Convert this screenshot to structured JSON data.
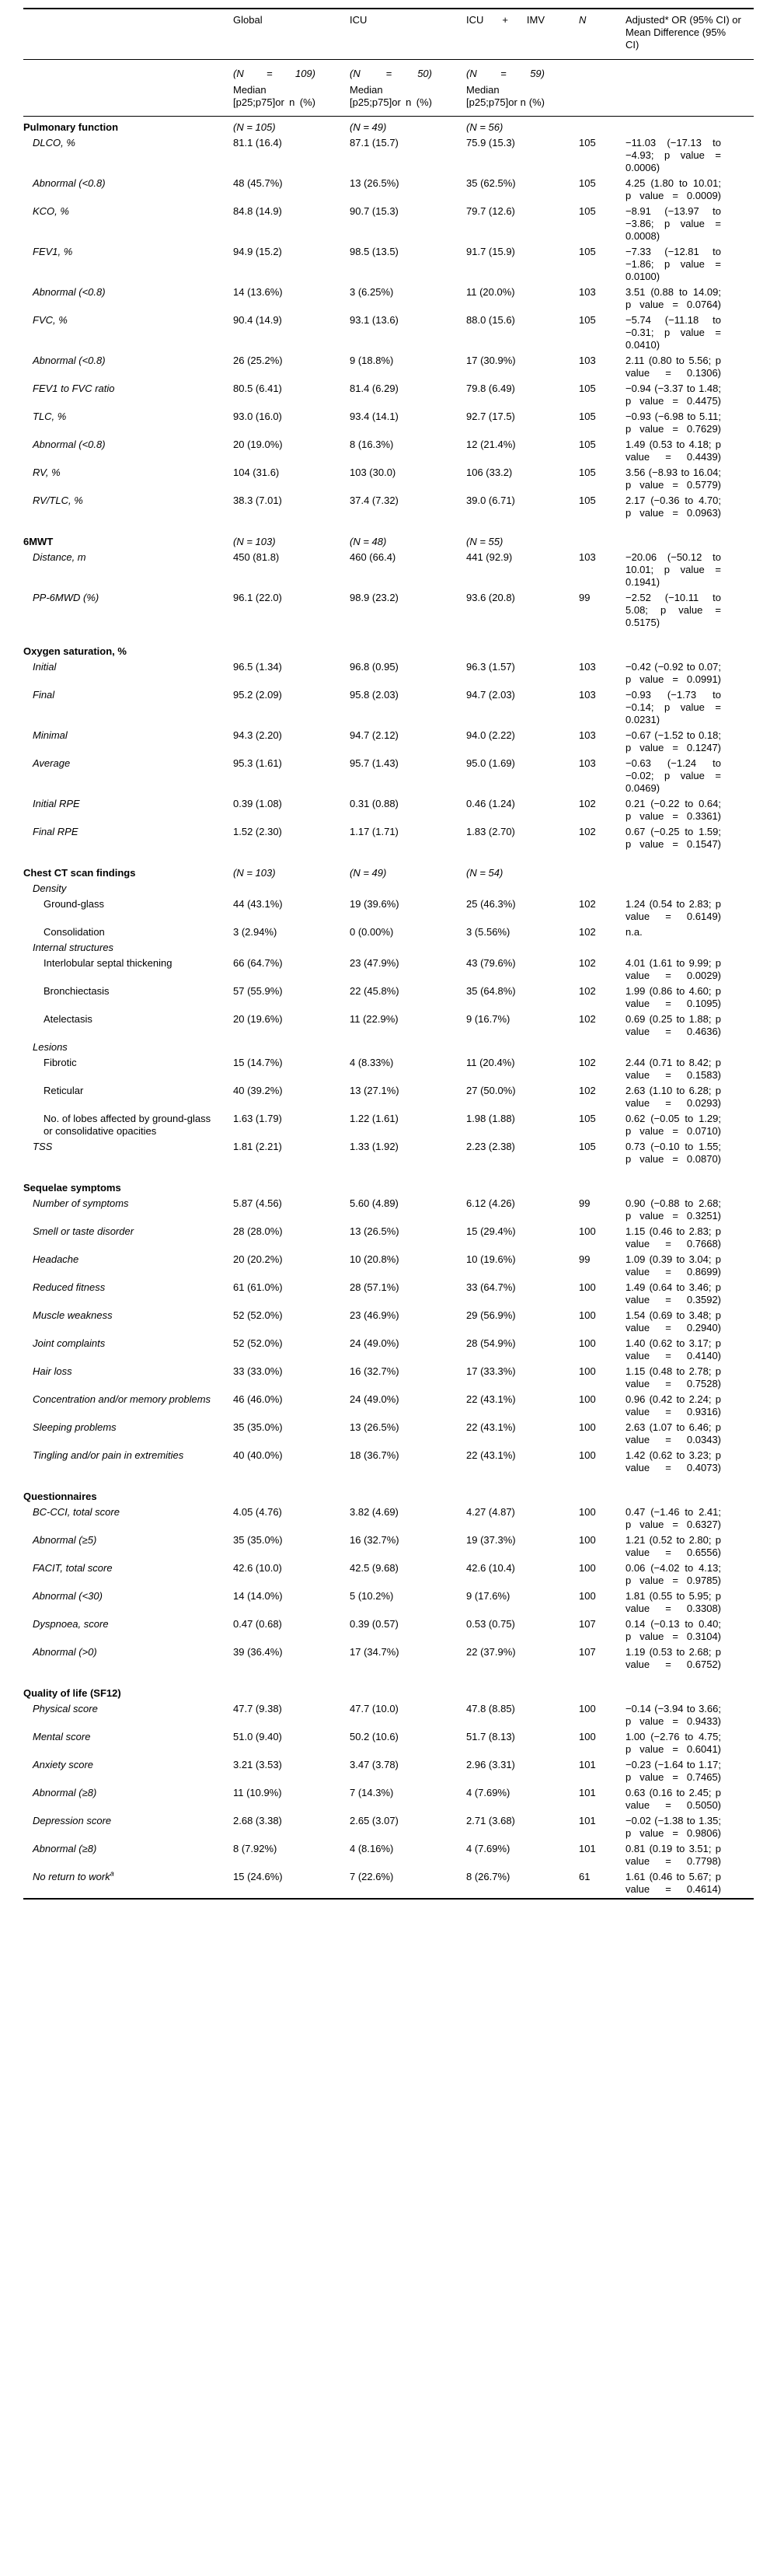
{
  "header": {
    "global": {
      "name": "Global",
      "n": "(N = 109)",
      "stat": "Median [p25;p75]or n (%)"
    },
    "icu": {
      "name": "ICU",
      "n": "(N = 50)",
      "stat": "Median [p25;p75]or n (%)"
    },
    "icu_imv": {
      "name": "ICU + IMV",
      "n": "(N = 59)",
      "stat": "Median [p25;p75]or n (%)"
    },
    "n_col": "N",
    "effect_col": "Adjusted* OR (95% CI) or Mean Difference (95% CI)"
  },
  "rows": [
    {
      "type": "section",
      "indent": 0,
      "label": "Pulmonary function",
      "global": "(N = 105)",
      "icu": "(N = 49)",
      "icu_imv": "(N = 56)",
      "n": "",
      "effect": ""
    },
    {
      "type": "item",
      "indent": 1,
      "italic": true,
      "label": "DLCO, %",
      "global": "81.1 (16.4)",
      "icu": "87.1 (15.7)",
      "icu_imv": "75.9 (15.3)",
      "n": "105",
      "effect": "−11.03 (−17.13 to −4.93; p value = 0.0006)"
    },
    {
      "type": "item",
      "indent": 1,
      "italic": true,
      "label": "Abnormal (<0.8)",
      "global": "48 (45.7%)",
      "icu": "13 (26.5%)",
      "icu_imv": "35 (62.5%)",
      "n": "105",
      "effect": "4.25 (1.80 to 10.01; p value = 0.0009)"
    },
    {
      "type": "item",
      "indent": 1,
      "italic": true,
      "label": "KCO, %",
      "global": "84.8 (14.9)",
      "icu": "90.7 (15.3)",
      "icu_imv": "79.7 (12.6)",
      "n": "105",
      "effect": "−8.91 (−13.97 to −3.86; p value = 0.0008)"
    },
    {
      "type": "item",
      "indent": 1,
      "italic": true,
      "label": "FEV1, %",
      "global": "94.9 (15.2)",
      "icu": "98.5 (13.5)",
      "icu_imv": "91.7 (15.9)",
      "n": "105",
      "effect": "−7.33 (−12.81 to −1.86; p value = 0.0100)"
    },
    {
      "type": "item",
      "indent": 1,
      "italic": true,
      "label": "Abnormal (<0.8)",
      "global": "14 (13.6%)",
      "icu": "3 (6.25%)",
      "icu_imv": "11 (20.0%)",
      "n": "103",
      "effect": "3.51 (0.88 to 14.09; p value = 0.0764)"
    },
    {
      "type": "item",
      "indent": 1,
      "italic": true,
      "label": "FVC, %",
      "global": "90.4 (14.9)",
      "icu": "93.1 (13.6)",
      "icu_imv": "88.0 (15.6)",
      "n": "105",
      "effect": "−5.74 (−11.18 to −0.31; p value = 0.0410)"
    },
    {
      "type": "item",
      "indent": 1,
      "italic": true,
      "label": "Abnormal (<0.8)",
      "global": "26 (25.2%)",
      "icu": "9 (18.8%)",
      "icu_imv": "17 (30.9%)",
      "n": "103",
      "effect": "2.11 (0.80 to 5.56; p value = 0.1306)"
    },
    {
      "type": "item",
      "indent": 1,
      "italic": true,
      "label": "FEV1 to FVC ratio",
      "global": "80.5 (6.41)",
      "icu": "81.4 (6.29)",
      "icu_imv": "79.8 (6.49)",
      "n": "105",
      "effect": "−0.94 (−3.37 to 1.48; p value = 0.4475)"
    },
    {
      "type": "item",
      "indent": 1,
      "italic": true,
      "label": "TLC, %",
      "global": "93.0 (16.0)",
      "icu": "93.4 (14.1)",
      "icu_imv": "92.7 (17.5)",
      "n": "105",
      "effect": "−0.93 (−6.98 to 5.11; p value = 0.7629)"
    },
    {
      "type": "item",
      "indent": 1,
      "italic": true,
      "label": "Abnormal (<0.8)",
      "global": "20 (19.0%)",
      "icu": "8 (16.3%)",
      "icu_imv": "12 (21.4%)",
      "n": "105",
      "effect": "1.49 (0.53 to 4.18; p value = 0.4439)"
    },
    {
      "type": "item",
      "indent": 1,
      "italic": true,
      "label": "RV, %",
      "global": "104 (31.6)",
      "icu": "103 (30.0)",
      "icu_imv": "106 (33.2)",
      "n": "105",
      "effect": "3.56 (−8.93 to 16.04; p value = 0.5779)"
    },
    {
      "type": "item",
      "indent": 1,
      "italic": true,
      "label": "RV/TLC, %",
      "global": "38.3 (7.01)",
      "icu": "37.4 (7.32)",
      "icu_imv": "39.0 (6.71)",
      "n": "105",
      "effect": "2.17 (−0.36 to 4.70; p value = 0.0963)"
    },
    {
      "type": "section",
      "indent": 0,
      "gap": true,
      "label": "6MWT",
      "global": "(N = 103)",
      "icu": "(N = 48)",
      "icu_imv": "(N = 55)",
      "n": "",
      "effect": ""
    },
    {
      "type": "item",
      "indent": 1,
      "italic": true,
      "label": "Distance, m",
      "global": "450 (81.8)",
      "icu": "460 (66.4)",
      "icu_imv": "441 (92.9)",
      "n": "103",
      "effect": "−20.06 (−50.12 to 10.01; p value = 0.1941)"
    },
    {
      "type": "item",
      "indent": 1,
      "italic": true,
      "label": "PP-6MWD (%)",
      "global": "96.1 (22.0)",
      "icu": "98.9 (23.2)",
      "icu_imv": "93.6 (20.8)",
      "n": "99",
      "effect": "−2.52 (−10.11 to 5.08; p value = 0.5175)"
    },
    {
      "type": "section",
      "indent": 0,
      "gap": true,
      "label": "Oxygen saturation, %",
      "global": "",
      "icu": "",
      "icu_imv": "",
      "n": "",
      "effect": ""
    },
    {
      "type": "item",
      "indent": 1,
      "italic": true,
      "label": "Initial",
      "global": "96.5 (1.34)",
      "icu": "96.8 (0.95)",
      "icu_imv": "96.3 (1.57)",
      "n": "103",
      "effect": "−0.42 (−0.92 to 0.07; p value = 0.0991)"
    },
    {
      "type": "item",
      "indent": 1,
      "italic": true,
      "label": "Final",
      "global": "95.2 (2.09)",
      "icu": "95.8 (2.03)",
      "icu_imv": "94.7 (2.03)",
      "n": "103",
      "effect": "−0.93 (−1.73 to −0.14; p value = 0.0231)"
    },
    {
      "type": "item",
      "indent": 1,
      "italic": true,
      "label": "Minimal",
      "global": "94.3 (2.20)",
      "icu": "94.7 (2.12)",
      "icu_imv": "94.0 (2.22)",
      "n": "103",
      "effect": "−0.67 (−1.52 to 0.18; p value = 0.1247)"
    },
    {
      "type": "item",
      "indent": 1,
      "italic": true,
      "label": "Average",
      "global": "95.3 (1.61)",
      "icu": "95.7 (1.43)",
      "icu_imv": "95.0 (1.69)",
      "n": "103",
      "effect": "−0.63 (−1.24 to −0.02; p value = 0.0469)"
    },
    {
      "type": "item",
      "indent": 1,
      "italic": true,
      "label": "Initial RPE",
      "global": "0.39 (1.08)",
      "icu": "0.31 (0.88)",
      "icu_imv": "0.46 (1.24)",
      "n": "102",
      "effect": "0.21 (−0.22 to 0.64; p value = 0.3361)"
    },
    {
      "type": "item",
      "indent": 1,
      "italic": true,
      "label": "Final RPE",
      "global": "1.52 (2.30)",
      "icu": "1.17 (1.71)",
      "icu_imv": "1.83 (2.70)",
      "n": "102",
      "effect": "0.67 (−0.25 to 1.59; p value = 0.1547)"
    },
    {
      "type": "section",
      "indent": 0,
      "gap": true,
      "label": "Chest CT scan findings",
      "global": "(N = 103)",
      "icu": "(N = 49)",
      "icu_imv": "(N = 54)",
      "n": "",
      "effect": ""
    },
    {
      "type": "subsection",
      "indent": 1,
      "italic": true,
      "label": "Density",
      "global": "",
      "icu": "",
      "icu_imv": "",
      "n": "",
      "effect": ""
    },
    {
      "type": "item",
      "indent": 2,
      "italic": false,
      "label": "Ground-glass",
      "global": "44 (43.1%)",
      "icu": "19 (39.6%)",
      "icu_imv": "25 (46.3%)",
      "n": "102",
      "effect": "1.24 (0.54 to 2.83; p value = 0.6149)"
    },
    {
      "type": "item",
      "indent": 2,
      "italic": false,
      "label": "Consolidation",
      "global": "3 (2.94%)",
      "icu": "0 (0.00%)",
      "icu_imv": "3 (5.56%)",
      "n": "102",
      "effect": "n.a."
    },
    {
      "type": "subsection",
      "indent": 1,
      "italic": true,
      "label": "Internal structures",
      "global": "",
      "icu": "",
      "icu_imv": "",
      "n": "",
      "effect": ""
    },
    {
      "type": "item",
      "indent": 2,
      "italic": false,
      "label": "Interlobular septal thickening",
      "global": "66 (64.7%)",
      "icu": "23 (47.9%)",
      "icu_imv": "43 (79.6%)",
      "n": "102",
      "effect": "4.01 (1.61 to 9.99; p value = 0.0029)"
    },
    {
      "type": "item",
      "indent": 2,
      "italic": false,
      "label": "Bronchiectasis",
      "global": "57 (55.9%)",
      "icu": "22 (45.8%)",
      "icu_imv": "35 (64.8%)",
      "n": "102",
      "effect": "1.99 (0.86 to 4.60; p value = 0.1095)"
    },
    {
      "type": "item",
      "indent": 2,
      "italic": false,
      "label": "Atelectasis",
      "global": "20 (19.6%)",
      "icu": "11 (22.9%)",
      "icu_imv": "9 (16.7%)",
      "n": "102",
      "effect": "0.69 (0.25 to 1.88; p value = 0.4636)"
    },
    {
      "type": "subsection",
      "indent": 1,
      "italic": true,
      "label": "Lesions",
      "global": "",
      "icu": "",
      "icu_imv": "",
      "n": "",
      "effect": ""
    },
    {
      "type": "item",
      "indent": 2,
      "italic": false,
      "label": "Fibrotic",
      "global": "15 (14.7%)",
      "icu": "4 (8.33%)",
      "icu_imv": "11 (20.4%)",
      "n": "102",
      "effect": "2.44 (0.71 to 8.42; p value = 0.1583)"
    },
    {
      "type": "item",
      "indent": 2,
      "italic": false,
      "label": "Reticular",
      "global": "40 (39.2%)",
      "icu": "13 (27.1%)",
      "icu_imv": "27 (50.0%)",
      "n": "102",
      "effect": "2.63 (1.10 to 6.28; p value = 0.0293)"
    },
    {
      "type": "item",
      "indent": 2,
      "italic": false,
      "label": "No. of lobes affected by ground-glass or consolidative opacities",
      "global": "1.63 (1.79)",
      "icu": "1.22 (1.61)",
      "icu_imv": "1.98 (1.88)",
      "n": "105",
      "effect": "0.62 (−0.05 to 1.29; p value = 0.0710)"
    },
    {
      "type": "item",
      "indent": 1,
      "italic": true,
      "label": "TSS",
      "global": "1.81 (2.21)",
      "icu": "1.33 (1.92)",
      "icu_imv": "2.23 (2.38)",
      "n": "105",
      "effect": "0.73 (−0.10 to 1.55; p value = 0.0870)"
    },
    {
      "type": "section",
      "indent": 0,
      "gap": true,
      "label": "Sequelae symptoms",
      "global": "",
      "icu": "",
      "icu_imv": "",
      "n": "",
      "effect": ""
    },
    {
      "type": "item",
      "indent": 1,
      "italic": true,
      "label": "Number of symptoms",
      "global": "5.87 (4.56)",
      "icu": "5.60 (4.89)",
      "icu_imv": "6.12 (4.26)",
      "n": "99",
      "effect": "0.90 (−0.88 to 2.68; p value = 0.3251)"
    },
    {
      "type": "item",
      "indent": 1,
      "italic": true,
      "label": "Smell or taste disorder",
      "global": "28 (28.0%)",
      "icu": "13 (26.5%)",
      "icu_imv": "15 (29.4%)",
      "n": "100",
      "effect": "1.15 (0.46 to 2.83; p value = 0.7668)"
    },
    {
      "type": "item",
      "indent": 1,
      "italic": true,
      "label": "Headache",
      "global": "20 (20.2%)",
      "icu": "10 (20.8%)",
      "icu_imv": "10 (19.6%)",
      "n": "99",
      "effect": "1.09 (0.39 to 3.04; p value = 0.8699)"
    },
    {
      "type": "item",
      "indent": 1,
      "italic": true,
      "label": "Reduced fitness",
      "global": "61 (61.0%)",
      "icu": "28 (57.1%)",
      "icu_imv": "33 (64.7%)",
      "n": "100",
      "effect": "1.49 (0.64 to 3.46; p value = 0.3592)"
    },
    {
      "type": "item",
      "indent": 1,
      "italic": true,
      "label": "Muscle weakness",
      "global": "52 (52.0%)",
      "icu": "23 (46.9%)",
      "icu_imv": "29 (56.9%)",
      "n": "100",
      "effect": "1.54 (0.69 to 3.48; p value = 0.2940)"
    },
    {
      "type": "item",
      "indent": 1,
      "italic": true,
      "label": "Joint complaints",
      "global": "52 (52.0%)",
      "icu": "24 (49.0%)",
      "icu_imv": "28 (54.9%)",
      "n": "100",
      "effect": "1.40 (0.62 to 3.17; p value = 0.4140)"
    },
    {
      "type": "item",
      "indent": 1,
      "italic": true,
      "label": "Hair loss",
      "global": "33 (33.0%)",
      "icu": "16 (32.7%)",
      "icu_imv": "17 (33.3%)",
      "n": "100",
      "effect": "1.15 (0.48 to 2.78; p value = 0.7528)"
    },
    {
      "type": "item",
      "indent": 1,
      "italic": true,
      "label": "Concentration and/or memory problems",
      "global": "46 (46.0%)",
      "icu": "24 (49.0%)",
      "icu_imv": "22 (43.1%)",
      "n": "100",
      "effect": "0.96 (0.42 to 2.24; p value = 0.9316)"
    },
    {
      "type": "item",
      "indent": 1,
      "italic": true,
      "label": "Sleeping problems",
      "global": "35 (35.0%)",
      "icu": "13 (26.5%)",
      "icu_imv": "22 (43.1%)",
      "n": "100",
      "effect": "2.63 (1.07 to 6.46; p value = 0.0343)"
    },
    {
      "type": "item",
      "indent": 1,
      "italic": true,
      "label": "Tingling and/or pain in extremities",
      "global": "40 (40.0%)",
      "icu": "18 (36.7%)",
      "icu_imv": "22 (43.1%)",
      "n": "100",
      "effect": "1.42 (0.62 to 3.23; p value = 0.4073)"
    },
    {
      "type": "section",
      "indent": 0,
      "gap": true,
      "label": "Questionnaires",
      "global": "",
      "icu": "",
      "icu_imv": "",
      "n": "",
      "effect": ""
    },
    {
      "type": "item",
      "indent": 1,
      "italic": true,
      "label": "BC-CCI, total score",
      "global": "4.05 (4.76)",
      "icu": "3.82 (4.69)",
      "icu_imv": "4.27 (4.87)",
      "n": "100",
      "effect": "0.47 (−1.46 to 2.41; p value = 0.6327)"
    },
    {
      "type": "item",
      "indent": 1,
      "italic": true,
      "label": "Abnormal (≥5)",
      "global": "35 (35.0%)",
      "icu": "16 (32.7%)",
      "icu_imv": "19 (37.3%)",
      "n": "100",
      "effect": "1.21 (0.52 to 2.80; p value = 0.6556)"
    },
    {
      "type": "item",
      "indent": 1,
      "italic": true,
      "label": "FACIT, total score",
      "global": "42.6 (10.0)",
      "icu": "42.5 (9.68)",
      "icu_imv": "42.6 (10.4)",
      "n": "100",
      "effect": "0.06 (−4.02 to 4.13; p value = 0.9785)"
    },
    {
      "type": "item",
      "indent": 1,
      "italic": true,
      "label": "Abnormal (<30)",
      "global": "14 (14.0%)",
      "icu": "5 (10.2%)",
      "icu_imv": "9 (17.6%)",
      "n": "100",
      "effect": "1.81 (0.55 to 5.95; p value = 0.3308)"
    },
    {
      "type": "item",
      "indent": 1,
      "italic": true,
      "label": "Dyspnoea, score",
      "global": "0.47 (0.68)",
      "icu": "0.39 (0.57)",
      "icu_imv": "0.53 (0.75)",
      "n": "107",
      "effect": "0.14 (−0.13 to 0.40; p value = 0.3104)"
    },
    {
      "type": "item",
      "indent": 1,
      "italic": true,
      "label": "Abnormal (>0)",
      "global": "39 (36.4%)",
      "icu": "17 (34.7%)",
      "icu_imv": "22 (37.9%)",
      "n": "107",
      "effect": "1.19 (0.53 to 2.68; p value = 0.6752)"
    },
    {
      "type": "section",
      "indent": 0,
      "gap": true,
      "label": "Quality of life (SF12)",
      "global": "",
      "icu": "",
      "icu_imv": "",
      "n": "",
      "effect": ""
    },
    {
      "type": "item",
      "indent": 1,
      "italic": true,
      "label": "Physical score",
      "global": "47.7 (9.38)",
      "icu": "47.7 (10.0)",
      "icu_imv": "47.8 (8.85)",
      "n": "100",
      "effect": "−0.14 (−3.94 to 3.66; p value = 0.9433)"
    },
    {
      "type": "item",
      "indent": 1,
      "italic": true,
      "label": "Mental score",
      "global": "51.0 (9.40)",
      "icu": "50.2 (10.6)",
      "icu_imv": "51.7 (8.13)",
      "n": "100",
      "effect": "1.00 (−2.76 to 4.75; p value = 0.6041)"
    },
    {
      "type": "item",
      "indent": 1,
      "italic": true,
      "label": "Anxiety score",
      "global": "3.21 (3.53)",
      "icu": "3.47 (3.78)",
      "icu_imv": "2.96 (3.31)",
      "n": "101",
      "effect": "−0.23 (−1.64 to 1.17; p value = 0.7465)"
    },
    {
      "type": "item",
      "indent": 1,
      "italic": true,
      "label": "Abnormal (≥8)",
      "global": "11 (10.9%)",
      "icu": "7 (14.3%)",
      "icu_imv": "4 (7.69%)",
      "n": "101",
      "effect": "0.63 (0.16 to 2.45; p value = 0.5050)"
    },
    {
      "type": "item",
      "indent": 1,
      "italic": true,
      "label": "Depression score",
      "global": "2.68 (3.38)",
      "icu": "2.65 (3.07)",
      "icu_imv": "2.71 (3.68)",
      "n": "101",
      "effect": "−0.02 (−1.38 to 1.35; p value = 0.9806)"
    },
    {
      "type": "item",
      "indent": 1,
      "italic": true,
      "label": "Abnormal (≥8)",
      "global": "8 (7.92%)",
      "icu": "4 (8.16%)",
      "icu_imv": "4 (7.69%)",
      "n": "101",
      "effect": "0.81 (0.19 to 3.51; p value = 0.7798)"
    },
    {
      "type": "item",
      "indent": 1,
      "italic": true,
      "label": "No return to work",
      "sup": "a",
      "global": "15 (24.6%)",
      "icu": "7 (22.6%)",
      "icu_imv": "8 (26.7%)",
      "n": "61",
      "effect": "1.61 (0.46 to 5.67; p value = 0.4614)"
    }
  ]
}
